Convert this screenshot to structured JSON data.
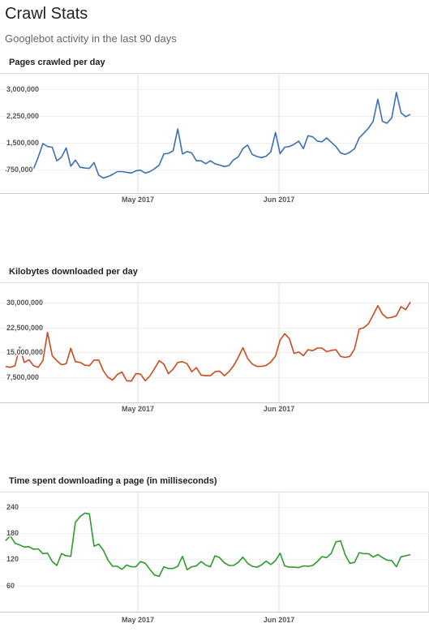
{
  "header": {
    "title": "Crawl Stats",
    "subtitle": "Googlebot activity in the last 90 days"
  },
  "colors": {
    "pages": "#3c6fb2",
    "kilobytes": "#cc4a1c",
    "time": "#2c9a2c",
    "grid": "#dddddd",
    "axis": "#666666"
  },
  "chart_data": [
    {
      "type": "line",
      "title": "Pages crawled per day",
      "x_tick_labels": [
        "May 2017",
        "Jun 2017"
      ],
      "y_tick_labels": [
        "3,000,000",
        "2,250,000",
        "1,500,000",
        "750,000"
      ],
      "yticks": [
        3000000,
        2250000,
        1500000,
        750000
      ],
      "ylim": [
        100000,
        3450000
      ],
      "grid": true,
      "series": [
        {
          "values": [
            720000,
            780000,
            730000,
            670000,
            720000,
            760000,
            780000,
            1100000,
            1480000,
            1400000,
            1380000,
            1000000,
            1100000,
            1360000,
            850000,
            1020000,
            820000,
            800000,
            790000,
            950000,
            600000,
            520000,
            560000,
            620000,
            700000,
            700000,
            680000,
            660000,
            720000,
            740000,
            660000,
            700000,
            780000,
            880000,
            1190000,
            1210000,
            1280000,
            1890000,
            1190000,
            1260000,
            1220000,
            1000000,
            1000000,
            920000,
            1000000,
            920000,
            880000,
            840000,
            870000,
            1030000,
            1110000,
            1340000,
            1440000,
            1180000,
            1120000,
            1090000,
            1130000,
            1250000,
            1790000,
            1200000,
            1380000,
            1400000,
            1460000,
            1550000,
            1340000,
            1700000,
            1670000,
            1550000,
            1530000,
            1640000,
            1520000,
            1400000,
            1220000,
            1180000,
            1240000,
            1340000,
            1640000,
            1770000,
            1910000,
            2100000,
            2720000,
            2100000,
            2050000,
            2200000,
            2910000,
            2340000,
            2230000,
            2300000
          ]
        }
      ]
    },
    {
      "type": "line",
      "title": "Kilobytes downloaded per day",
      "x_tick_labels": [
        "May 2017",
        "Jun 2017"
      ],
      "y_tick_labels": [
        "30,000,000",
        "22,500,000",
        "15,000,000",
        "7,500,000"
      ],
      "yticks": [
        30000000,
        22500000,
        15000000,
        7500000
      ],
      "ylim": [
        0,
        36000000
      ],
      "grid": true,
      "series": [
        {
          "values": [
            10800000,
            10500000,
            11000000,
            16600000,
            12000000,
            12800000,
            11000000,
            10500000,
            12500000,
            21000000,
            14000000,
            12500000,
            11300000,
            11600000,
            16200000,
            12200000,
            12000000,
            11200000,
            11000000,
            12700000,
            12700000,
            9500000,
            7500000,
            6700000,
            8400000,
            9100000,
            6500000,
            6400000,
            8600000,
            8500000,
            6500000,
            7900000,
            10100000,
            12500000,
            11500000,
            8600000,
            10000000,
            12000000,
            12200000,
            11600000,
            9200000,
            10400000,
            8200000,
            8000000,
            8000000,
            9200000,
            9400000,
            8000000,
            9200000,
            11000000,
            13500000,
            16400000,
            13200000,
            11500000,
            10800000,
            10800000,
            11100000,
            12100000,
            13900000,
            18700000,
            20600000,
            19100000,
            14700000,
            15100000,
            14000000,
            15800000,
            15500000,
            16300000,
            16300000,
            15200000,
            15600000,
            15800000,
            13800000,
            13500000,
            13800000,
            16000000,
            22000000,
            22400000,
            23600000,
            26200000,
            29000000,
            26500000,
            25300000,
            25500000,
            26000000,
            28700000,
            27800000,
            30100000
          ]
        }
      ]
    },
    {
      "type": "line",
      "title": "Time spent downloading a page (in milliseconds)",
      "x_tick_labels": [
        "May 2017",
        "Jun 2017"
      ],
      "y_tick_labels": [
        "240",
        "180",
        "120",
        "60"
      ],
      "yticks": [
        240,
        180,
        120,
        60
      ],
      "ylim": [
        0,
        275
      ],
      "grid": true,
      "series": [
        {
          "values": [
            163,
            174,
            157,
            153,
            148,
            149,
            143,
            144,
            133,
            134,
            115,
            106,
            133,
            128,
            127,
            205,
            218,
            226,
            224,
            150,
            155,
            141,
            118,
            104,
            104,
            97,
            107,
            103,
            103,
            115,
            111,
            97,
            84,
            81,
            103,
            99,
            99,
            104,
            127,
            96,
            103,
            105,
            115,
            107,
            103,
            128,
            124,
            112,
            106,
            106,
            113,
            125,
            111,
            104,
            102,
            107,
            116,
            108,
            117,
            134,
            105,
            102,
            102,
            101,
            105,
            104,
            106,
            115,
            126,
            124,
            134,
            160,
            162,
            130,
            111,
            113,
            135,
            133,
            133,
            125,
            131,
            124,
            118,
            117,
            103,
            126,
            128,
            131
          ]
        }
      ]
    }
  ]
}
